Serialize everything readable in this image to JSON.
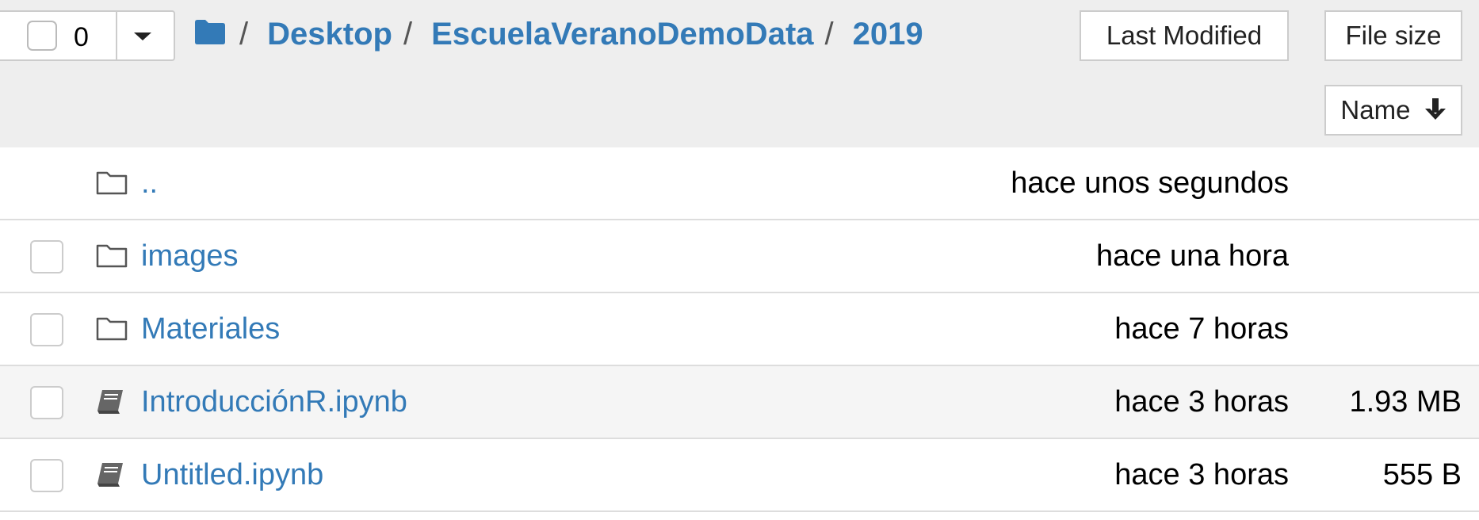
{
  "toolbar": {
    "selected_count": "0",
    "last_modified_label": "Last Modified",
    "file_size_label": "File size",
    "name_sort_label": "Name"
  },
  "breadcrumb": {
    "separator": "/",
    "items": [
      "Desktop",
      "EscuelaVeranoDemoData",
      "2019"
    ]
  },
  "files": [
    {
      "name": "..",
      "modified": "hace unos segundos",
      "size": "",
      "type": "folder",
      "icon": "folder-open-icon",
      "selectable": false
    },
    {
      "name": "images",
      "modified": "hace una hora",
      "size": "",
      "type": "folder",
      "icon": "folder-icon",
      "selectable": true
    },
    {
      "name": "Materiales",
      "modified": "hace 7 horas",
      "size": "",
      "type": "folder",
      "icon": "folder-icon",
      "selectable": true
    },
    {
      "name": "IntroducciónR.ipynb",
      "modified": "hace 3 horas",
      "size": "1.93 MB",
      "type": "notebook",
      "icon": "notebook-icon",
      "selectable": true
    },
    {
      "name": "Untitled.ipynb",
      "modified": "hace 3 horas",
      "size": "555 B",
      "type": "notebook",
      "icon": "notebook-icon",
      "selectable": true
    }
  ],
  "colors": {
    "link": "#337ab7",
    "header_bg": "#eeeeee",
    "row_highlight": "#f5f5f5",
    "border": "#dddddd"
  }
}
